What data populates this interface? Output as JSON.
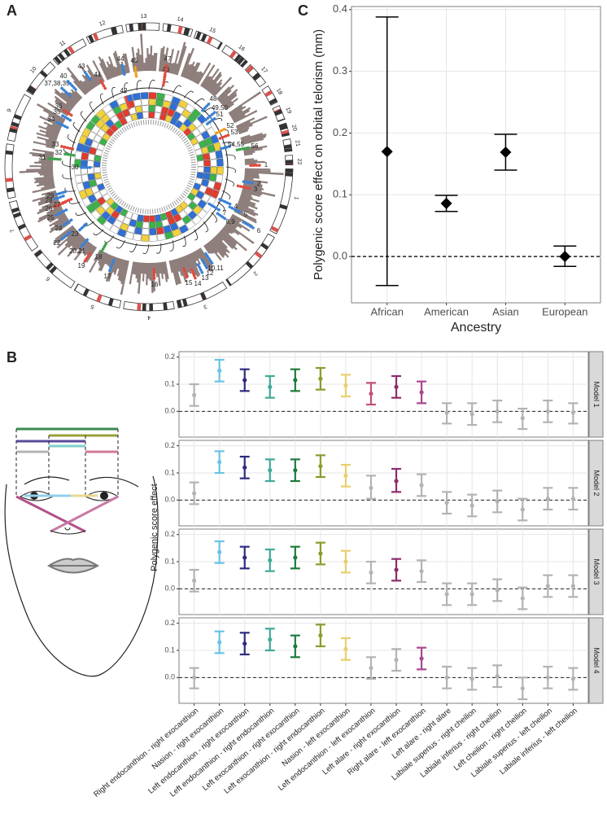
{
  "chart_data": [
    {
      "type": "circos",
      "panel": "A",
      "chromosomes": [
        "1",
        "2",
        "3",
        "4",
        "5",
        "6",
        "7",
        "8",
        "9",
        "10",
        "11",
        "12",
        "13",
        "14",
        "15",
        "16",
        "17",
        "18",
        "19",
        "20",
        "21",
        "22"
      ],
      "loci": [
        {
          "label": "1",
          "color": "#e04a3c"
        },
        {
          "label": "2",
          "color": "#3b82d6"
        },
        {
          "label": "3",
          "color": "#e04a3c"
        },
        {
          "label": "4",
          "color": "#3b82d6"
        },
        {
          "label": "5",
          "color": "#3b82d6"
        },
        {
          "label": "6",
          "color": "#3b82d6"
        },
        {
          "label": "7",
          "color": "#3b82d6"
        },
        {
          "label": "8,9",
          "color": "#3b82d6"
        },
        {
          "label": "10,11",
          "color": "#3b82d6"
        },
        {
          "label": "12",
          "color": "#3b82d6"
        },
        {
          "label": "13",
          "color": "#3b82d6"
        },
        {
          "label": "14",
          "color": "#e04a3c"
        },
        {
          "label": "15",
          "color": "#e04a3c"
        },
        {
          "label": "16",
          "color": "#e04a3c"
        },
        {
          "label": "17",
          "color": "#3b82d6"
        },
        {
          "label": "18",
          "color": "#3aa34a"
        },
        {
          "label": "19",
          "color": "#e04a3c"
        },
        {
          "label": "20,21",
          "color": "#3b82d6"
        },
        {
          "label": "22",
          "color": "#3b82d6"
        },
        {
          "label": "23",
          "color": "#3b82d6"
        },
        {
          "label": "24",
          "color": "#3b82d6"
        },
        {
          "label": "25",
          "color": "#3b82d6"
        },
        {
          "label": "26",
          "color": "#e04a3c"
        },
        {
          "label": "27",
          "color": "#e04a3c"
        },
        {
          "label": "28",
          "color": "#3b82d6"
        },
        {
          "label": "29",
          "color": "#3b82d6"
        },
        {
          "label": "30",
          "color": "#3b82d6"
        },
        {
          "label": "31",
          "color": "#3aa34a"
        },
        {
          "label": "32",
          "color": "#3aa34a"
        },
        {
          "label": "33",
          "color": "#e04a3c"
        },
        {
          "label": "34",
          "color": "#3b82d6"
        },
        {
          "label": "35",
          "color": "#3b82d6"
        },
        {
          "label": "36",
          "color": "#e04a3c"
        },
        {
          "label": "37,38,39",
          "color": "#3b82d6"
        },
        {
          "label": "40",
          "color": "#3b82d6"
        },
        {
          "label": "41",
          "color": "#e04a3c"
        },
        {
          "label": "42",
          "color": "#e04a3c"
        },
        {
          "label": "43",
          "color": "#3b82d6"
        },
        {
          "label": "44",
          "color": "#3b82d6"
        },
        {
          "label": "45",
          "color": "#f0a020"
        },
        {
          "label": "46",
          "color": "#e04a3c"
        },
        {
          "label": "47",
          "color": "#e04a3c"
        },
        {
          "label": "48",
          "color": "#3b82d6"
        },
        {
          "label": "49,50",
          "color": "#3b82d6"
        },
        {
          "label": "51",
          "color": "#3b82d6"
        },
        {
          "label": "52",
          "color": "#f0a020"
        },
        {
          "label": "53",
          "color": "#e04a3c"
        },
        {
          "label": "54,55",
          "color": "#3b82d6"
        },
        {
          "label": "56",
          "color": "#3aa34a"
        }
      ]
    },
    {
      "type": "errorbar",
      "panel": "C",
      "y_label": "Polygenic score effect on orbital telorism (mm)",
      "x_label": "Ancestry",
      "categories": [
        "African",
        "American",
        "Asian",
        "European"
      ],
      "values": [
        0.17,
        0.086,
        0.169,
        0.0
      ],
      "lower": [
        -0.047,
        0.073,
        0.14,
        -0.016
      ],
      "upper": [
        0.388,
        0.099,
        0.198,
        0.017
      ],
      "color": "#000000",
      "hline": 0,
      "ylim": [
        -0.075,
        0.405
      ],
      "yticks": [
        {
          "value": 0,
          "label": "0.0"
        },
        {
          "value": 0.1,
          "label": "0.1"
        },
        {
          "value": 0.2,
          "label": "0.2"
        },
        {
          "value": 0.3,
          "label": "0.3"
        },
        {
          "value": 0.4,
          "label": "0.4"
        }
      ],
      "grid": true
    },
    {
      "type": "errorbar",
      "panel": "B",
      "y_label": "Polygenic score effect",
      "categories": [
        "Right endocanthion - right exocanthion",
        "Nasion - right exocanthion",
        "Left endocanthion - right exocanthion",
        "Left endocanthion - right endocanthion",
        "Left exocanthion - right exocanthion",
        "Left exocanthion - right endocanthion",
        "Nasion - left exocanthion",
        "Left endocanthion - left exocanthion",
        "Left alare - right exocanthion",
        "Right alare - left exocanthion",
        "Left alare - right alare",
        "Labiale superius - right cheilion",
        "Labiale inferius - right cheilion",
        "Left cheilion - right cheilion",
        "Labiale superius - left cheilion",
        "Labiale inferius - left cheilion"
      ],
      "hline": 0,
      "ylim": [
        -0.095,
        0.22
      ],
      "yticks": [
        {
          "value": 0,
          "label": "0.0"
        },
        {
          "value": 0.1,
          "label": "0.1"
        },
        {
          "value": 0.2,
          "label": "0.2"
        }
      ],
      "grid": true,
      "facets": [
        {
          "name": "Model 1",
          "values": [
            0.06,
            0.15,
            0.115,
            0.09,
            0.115,
            0.12,
            0.095,
            0.065,
            0.09,
            0.07,
            -0.005,
            -0.01,
            0.0,
            -0.025,
            0.0,
            -0.005
          ],
          "lower": [
            0.02,
            0.11,
            0.075,
            0.05,
            0.075,
            0.08,
            0.055,
            0.025,
            0.05,
            0.03,
            -0.045,
            -0.05,
            -0.04,
            -0.065,
            -0.04,
            -0.045
          ],
          "upper": [
            0.1,
            0.19,
            0.155,
            0.13,
            0.155,
            0.16,
            0.135,
            0.105,
            0.13,
            0.11,
            0.03,
            0.03,
            0.04,
            0.01,
            0.04,
            0.03
          ],
          "colors": [
            "#b3b3b3",
            "#67c3e6",
            "#2e2a80",
            "#3ea99a",
            "#1f7a3b",
            "#8c9a2c",
            "#e8cf6c",
            "#c4507a",
            "#8e2b6c",
            "#a8478f",
            "#b3b3b3",
            "#b3b3b3",
            "#b3b3b3",
            "#b3b3b3",
            "#b3b3b3",
            "#b3b3b3"
          ]
        },
        {
          "name": "Model 2",
          "values": [
            0.025,
            0.14,
            0.12,
            0.11,
            0.11,
            0.125,
            0.09,
            0.045,
            0.07,
            0.055,
            -0.01,
            -0.02,
            -0.005,
            -0.035,
            0.005,
            0.005
          ],
          "lower": [
            -0.015,
            0.1,
            0.08,
            0.07,
            0.07,
            0.085,
            0.05,
            0.005,
            0.03,
            0.015,
            -0.05,
            -0.06,
            -0.045,
            -0.075,
            -0.035,
            -0.035
          ],
          "upper": [
            0.065,
            0.18,
            0.16,
            0.15,
            0.15,
            0.165,
            0.13,
            0.09,
            0.115,
            0.095,
            0.03,
            0.02,
            0.035,
            0.005,
            0.045,
            0.045
          ],
          "colors": [
            "#b3b3b3",
            "#67c3e6",
            "#2e2a80",
            "#3ea99a",
            "#1f7a3b",
            "#8c9a2c",
            "#e8cf6c",
            "#b3b3b3",
            "#8e2b6c",
            "#b3b3b3",
            "#b3b3b3",
            "#b3b3b3",
            "#b3b3b3",
            "#b3b3b3",
            "#b3b3b3",
            "#b3b3b3"
          ]
        },
        {
          "name": "Model 3",
          "values": [
            0.03,
            0.135,
            0.115,
            0.105,
            0.115,
            0.13,
            0.1,
            0.06,
            0.07,
            0.065,
            -0.02,
            -0.02,
            -0.005,
            -0.035,
            0.01,
            0.01
          ],
          "lower": [
            -0.01,
            0.095,
            0.075,
            0.065,
            0.075,
            0.09,
            0.06,
            0.02,
            0.03,
            0.025,
            -0.06,
            -0.06,
            -0.045,
            -0.075,
            -0.03,
            -0.03
          ],
          "upper": [
            0.07,
            0.175,
            0.155,
            0.145,
            0.155,
            0.17,
            0.14,
            0.1,
            0.11,
            0.105,
            0.02,
            0.02,
            0.035,
            0.005,
            0.05,
            0.05
          ],
          "colors": [
            "#b3b3b3",
            "#67c3e6",
            "#2e2a80",
            "#3ea99a",
            "#1f7a3b",
            "#8c9a2c",
            "#e8cf6c",
            "#b3b3b3",
            "#8e2b6c",
            "#b3b3b3",
            "#b3b3b3",
            "#b3b3b3",
            "#b3b3b3",
            "#b3b3b3",
            "#b3b3b3",
            "#b3b3b3"
          ]
        },
        {
          "name": "Model 4",
          "values": [
            0.0,
            0.13,
            0.125,
            0.14,
            0.115,
            0.155,
            0.105,
            0.035,
            0.065,
            0.07,
            0.0,
            -0.005,
            0.005,
            -0.04,
            0.0,
            -0.005
          ],
          "lower": [
            -0.04,
            0.09,
            0.085,
            0.1,
            0.075,
            0.115,
            0.065,
            -0.005,
            0.025,
            0.03,
            -0.04,
            -0.045,
            -0.035,
            -0.08,
            -0.04,
            -0.045
          ],
          "upper": [
            0.035,
            0.17,
            0.165,
            0.18,
            0.155,
            0.195,
            0.145,
            0.075,
            0.105,
            0.11,
            0.04,
            0.035,
            0.045,
            0.0,
            0.04,
            0.035
          ],
          "colors": [
            "#b3b3b3",
            "#67c3e6",
            "#2e2a80",
            "#3ea99a",
            "#1f7a3b",
            "#8c9a2c",
            "#e8cf6c",
            "#b3b3b3",
            "#b3b3b3",
            "#a8478f",
            "#b3b3b3",
            "#b3b3b3",
            "#b3b3b3",
            "#b3b3b3",
            "#b3b3b3",
            "#b3b3b3"
          ]
        }
      ]
    }
  ]
}
